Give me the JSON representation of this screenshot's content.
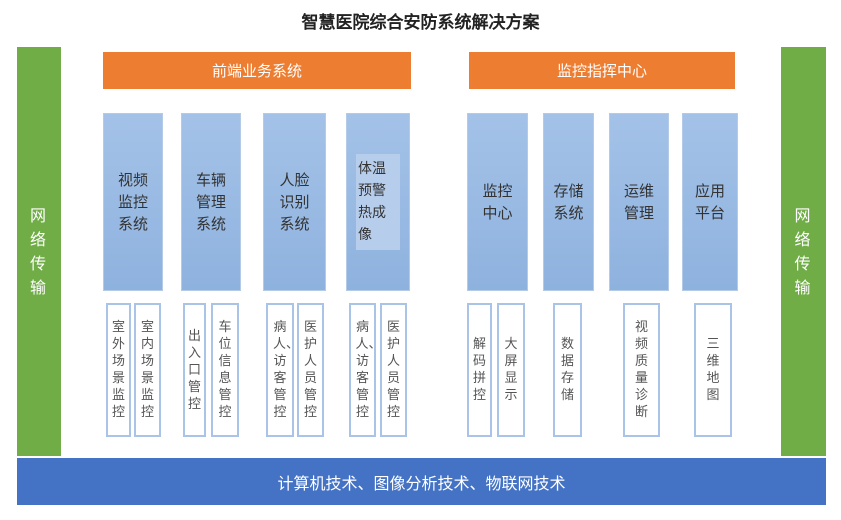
{
  "title": "智慧医院综合安防系统解决方案",
  "side_left": "网络传输",
  "side_right": "网络传输",
  "groups": [
    {
      "label": "前端业务系统",
      "systems": [
        {
          "label": "视频监控系统",
          "items": [
            "室外场景监控",
            "室内场景监控"
          ]
        },
        {
          "label": "车辆管理系统",
          "items": [
            "出入口管控",
            "车位信息管控"
          ]
        },
        {
          "label": "人脸识别系统",
          "items": [
            "病人、访客管控",
            "医护人员管控"
          ]
        },
        {
          "label": "体温预警热成像",
          "items": [
            "病人、访客管控",
            "医护人员管控"
          ]
        }
      ]
    },
    {
      "label": "监控指挥中心",
      "systems": [
        {
          "label": "监控中心",
          "items": [
            "解码拼控",
            "大屏显示"
          ]
        },
        {
          "label": "存储系统",
          "items": [
            "数据存储"
          ]
        },
        {
          "label": "运维管理",
          "items": [
            "视频质量诊断"
          ]
        },
        {
          "label": "应用平台",
          "items": [
            "三维地图"
          ]
        }
      ]
    }
  ],
  "bottom": "计算机技术、图像分析技术、物联网技术",
  "colors": {
    "green": "#70ad47",
    "orange": "#ed7d31",
    "blue": "#4472c4",
    "light_blue": "#9dc3e6"
  }
}
